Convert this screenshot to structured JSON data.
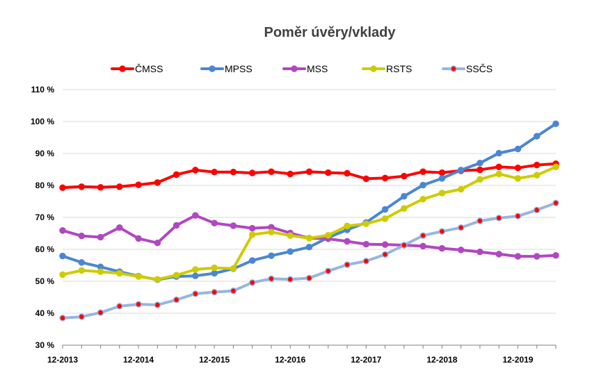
{
  "chart_data": {
    "type": "line",
    "title": "Poměr úvěry/vklady",
    "xlabel": "",
    "ylabel": "",
    "ylim": [
      30,
      110
    ],
    "y_ticks": [
      "30 %",
      "40 %",
      "50 %",
      "60 %",
      "70 %",
      "80 %",
      "90 %",
      "100 %",
      "110 %"
    ],
    "x_tick_labels": [
      "12-2013",
      "12-2014",
      "12-2015",
      "12-2016",
      "12-2017",
      "12-2018",
      "12-2019"
    ],
    "x_points_per_year": 4,
    "grid": "horizontal",
    "legend_position": "top",
    "series": [
      {
        "name": "ČMSS",
        "color": "#ff0000",
        "marker_fill": "#ff0000",
        "values": [
          79.3,
          79.6,
          79.4,
          79.6,
          80.2,
          80.9,
          83.4,
          84.8,
          84.2,
          84.2,
          83.9,
          84.3,
          83.6,
          84.3,
          84.0,
          83.8,
          82.1,
          82.3,
          82.9,
          84.3,
          84.0,
          84.6,
          84.9,
          85.8,
          85.5,
          86.4,
          86.8
        ]
      },
      {
        "name": "MPSS",
        "color": "#4a86d4",
        "marker_fill": "#4a86d4",
        "values": [
          57.9,
          55.9,
          54.5,
          53.0,
          51.6,
          50.5,
          51.5,
          51.7,
          52.5,
          53.9,
          56.5,
          58.0,
          59.3,
          60.7,
          63.7,
          66.1,
          68.4,
          72.5,
          76.6,
          80.1,
          82.2,
          84.8,
          87.0,
          90.1,
          91.4,
          95.4,
          99.3
        ]
      },
      {
        "name": "MSS",
        "color": "#b146c2",
        "marker_fill": "#b146c2",
        "values": [
          65.9,
          64.2,
          63.8,
          66.8,
          63.4,
          62.0,
          67.5,
          70.6,
          68.2,
          67.4,
          66.6,
          66.9,
          65.1,
          63.5,
          63.3,
          62.5,
          61.6,
          61.5,
          61.3,
          61.0,
          60.3,
          59.8,
          59.2,
          58.5,
          57.8,
          57.8,
          58.1
        ]
      },
      {
        "name": "RSTS",
        "color": "#cccc00",
        "marker_fill": "#cccc00",
        "values": [
          52.1,
          53.4,
          53.0,
          52.5,
          51.5,
          50.6,
          51.9,
          53.7,
          54.2,
          54.0,
          64.6,
          65.4,
          64.3,
          63.5,
          64.4,
          67.3,
          68.0,
          69.6,
          72.8,
          75.7,
          77.6,
          78.8,
          81.9,
          83.6,
          82.2,
          83.2,
          85.8
        ]
      },
      {
        "name": "SSČS",
        "color": "#95b6e0",
        "marker_fill": "#ff0000",
        "values": [
          38.5,
          38.9,
          40.2,
          42.2,
          42.8,
          42.6,
          44.2,
          46.1,
          46.6,
          47.0,
          49.6,
          50.8,
          50.6,
          51.0,
          53.2,
          55.2,
          56.3,
          58.4,
          61.3,
          64.3,
          65.6,
          66.8,
          68.9,
          69.8,
          70.4,
          72.3,
          74.5
        ]
      }
    ]
  }
}
